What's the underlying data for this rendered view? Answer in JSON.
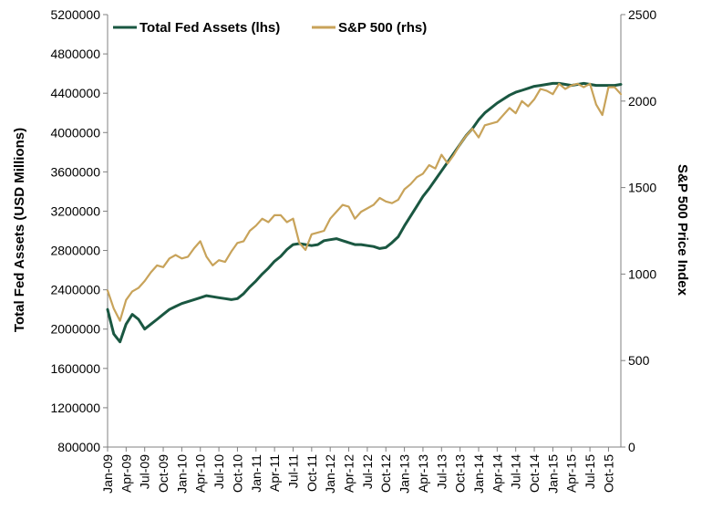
{
  "chart_data": {
    "type": "line",
    "left_axis": {
      "label": "Total Fed Assets (USD Millions)",
      "ylim": [
        800000,
        5200000
      ],
      "ticks": [
        800000,
        1200000,
        1600000,
        2000000,
        2400000,
        2800000,
        3200000,
        3600000,
        4000000,
        4400000,
        4800000,
        5200000
      ]
    },
    "right_axis": {
      "label": "S&P 500 Price Index",
      "ylim": [
        0,
        2500
      ],
      "ticks": [
        0,
        500,
        1000,
        1500,
        2000,
        2500
      ]
    },
    "x_ticks": [
      "Jan-09",
      "Apr-09",
      "Jul-09",
      "Oct-09",
      "Jan-10",
      "Apr-10",
      "Jul-10",
      "Oct-10",
      "Jan-11",
      "Apr-11",
      "Jul-11",
      "Oct-11",
      "Jan-12",
      "Apr-12",
      "Jul-12",
      "Oct-12",
      "Jan-13",
      "Apr-13",
      "Jul-13",
      "Oct-13",
      "Jan-14",
      "Apr-14",
      "Jul-14",
      "Oct-14",
      "Jan-15",
      "Apr-15",
      "Jul-15",
      "Oct-15"
    ],
    "legend_position": "top-left",
    "grid": false,
    "series": [
      {
        "name": "Total Fed Assets (lhs)",
        "axis": "left",
        "color": "#1a5741",
        "x": [
          "Jan-09",
          "Feb-09",
          "Mar-09",
          "Apr-09",
          "May-09",
          "Jun-09",
          "Jul-09",
          "Aug-09",
          "Sep-09",
          "Oct-09",
          "Nov-09",
          "Dec-09",
          "Jan-10",
          "Feb-10",
          "Mar-10",
          "Apr-10",
          "May-10",
          "Jun-10",
          "Jul-10",
          "Aug-10",
          "Sep-10",
          "Oct-10",
          "Nov-10",
          "Dec-10",
          "Jan-11",
          "Feb-11",
          "Mar-11",
          "Apr-11",
          "May-11",
          "Jun-11",
          "Jul-11",
          "Aug-11",
          "Sep-11",
          "Oct-11",
          "Nov-11",
          "Dec-11",
          "Jan-12",
          "Feb-12",
          "Mar-12",
          "Apr-12",
          "May-12",
          "Jun-12",
          "Jul-12",
          "Aug-12",
          "Sep-12",
          "Oct-12",
          "Nov-12",
          "Dec-12",
          "Jan-13",
          "Feb-13",
          "Mar-13",
          "Apr-13",
          "May-13",
          "Jun-13",
          "Jul-13",
          "Aug-13",
          "Sep-13",
          "Oct-13",
          "Nov-13",
          "Dec-13",
          "Jan-14",
          "Feb-14",
          "Mar-14",
          "Apr-14",
          "May-14",
          "Jun-14",
          "Jul-14",
          "Aug-14",
          "Sep-14",
          "Oct-14",
          "Nov-14",
          "Dec-14",
          "Jan-15",
          "Feb-15",
          "Mar-15",
          "Apr-15",
          "May-15",
          "Jun-15",
          "Jul-15",
          "Aug-15",
          "Sep-15",
          "Oct-15",
          "Nov-15",
          "Dec-15"
        ],
        "values": [
          2200000,
          1950000,
          1870000,
          2050000,
          2150000,
          2100000,
          2000000,
          2050000,
          2100000,
          2150000,
          2200000,
          2230000,
          2260000,
          2280000,
          2300000,
          2320000,
          2340000,
          2330000,
          2320000,
          2310000,
          2300000,
          2310000,
          2360000,
          2430000,
          2490000,
          2560000,
          2620000,
          2690000,
          2740000,
          2810000,
          2860000,
          2870000,
          2860000,
          2850000,
          2860000,
          2900000,
          2910000,
          2920000,
          2900000,
          2880000,
          2860000,
          2860000,
          2850000,
          2840000,
          2820000,
          2830000,
          2880000,
          2940000,
          3050000,
          3150000,
          3250000,
          3350000,
          3430000,
          3520000,
          3610000,
          3700000,
          3790000,
          3880000,
          3970000,
          4040000,
          4130000,
          4200000,
          4250000,
          4300000,
          4340000,
          4380000,
          4410000,
          4430000,
          4450000,
          4470000,
          4480000,
          4490000,
          4500000,
          4500000,
          4490000,
          4480000,
          4490000,
          4500000,
          4490000,
          4480000,
          4480000,
          4480000,
          4480000,
          4490000
        ]
      },
      {
        "name": "S&P 500 (rhs)",
        "axis": "right",
        "color": "#c8a35a",
        "x": [
          "Jan-09",
          "Feb-09",
          "Mar-09",
          "Apr-09",
          "May-09",
          "Jun-09",
          "Jul-09",
          "Aug-09",
          "Sep-09",
          "Oct-09",
          "Nov-09",
          "Dec-09",
          "Jan-10",
          "Feb-10",
          "Mar-10",
          "Apr-10",
          "May-10",
          "Jun-10",
          "Jul-10",
          "Aug-10",
          "Sep-10",
          "Oct-10",
          "Nov-10",
          "Dec-10",
          "Jan-11",
          "Feb-11",
          "Mar-11",
          "Apr-11",
          "May-11",
          "Jun-11",
          "Jul-11",
          "Aug-11",
          "Sep-11",
          "Oct-11",
          "Nov-11",
          "Dec-11",
          "Jan-12",
          "Feb-12",
          "Mar-12",
          "Apr-12",
          "May-12",
          "Jun-12",
          "Jul-12",
          "Aug-12",
          "Sep-12",
          "Oct-12",
          "Nov-12",
          "Dec-12",
          "Jan-13",
          "Feb-13",
          "Mar-13",
          "Apr-13",
          "May-13",
          "Jun-13",
          "Jul-13",
          "Aug-13",
          "Sep-13",
          "Oct-13",
          "Nov-13",
          "Dec-13",
          "Jan-14",
          "Feb-14",
          "Mar-14",
          "Apr-14",
          "May-14",
          "Jun-14",
          "Jul-14",
          "Aug-14",
          "Sep-14",
          "Oct-14",
          "Nov-14",
          "Dec-14",
          "Jan-15",
          "Feb-15",
          "Mar-15",
          "Apr-15",
          "May-15",
          "Jun-15",
          "Jul-15",
          "Aug-15",
          "Sep-15",
          "Oct-15",
          "Nov-15",
          "Dec-15"
        ],
        "values": [
          905,
          800,
          730,
          850,
          900,
          920,
          960,
          1010,
          1050,
          1040,
          1090,
          1110,
          1090,
          1100,
          1150,
          1190,
          1100,
          1050,
          1080,
          1070,
          1130,
          1180,
          1190,
          1250,
          1280,
          1320,
          1300,
          1340,
          1340,
          1300,
          1320,
          1180,
          1140,
          1230,
          1240,
          1250,
          1320,
          1360,
          1400,
          1390,
          1320,
          1360,
          1380,
          1400,
          1440,
          1420,
          1410,
          1430,
          1490,
          1520,
          1560,
          1580,
          1630,
          1610,
          1690,
          1640,
          1690,
          1750,
          1800,
          1840,
          1790,
          1860,
          1870,
          1880,
          1920,
          1960,
          1930,
          2000,
          1970,
          2010,
          2070,
          2060,
          2040,
          2100,
          2070,
          2090,
          2100,
          2080,
          2100,
          1980,
          1920,
          2080,
          2080,
          2040
        ]
      }
    ]
  }
}
